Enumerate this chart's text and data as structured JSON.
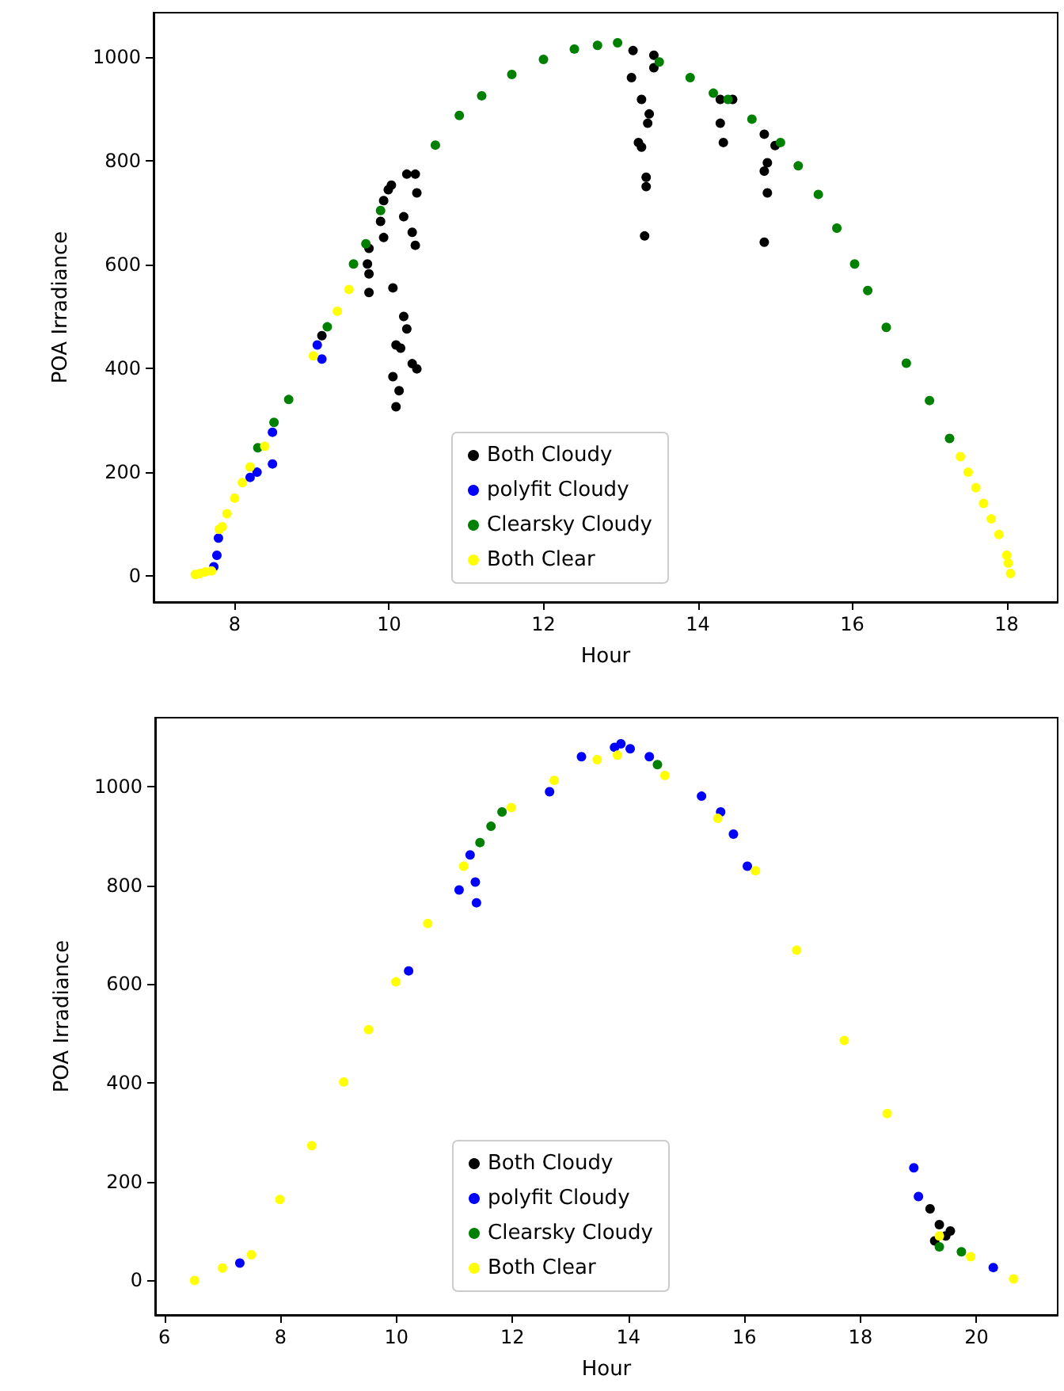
{
  "chart_data": [
    {
      "type": "scatter",
      "xlabel": "Hour",
      "ylabel": "POA Irradiance",
      "xlim": [
        6.95,
        18.66
      ],
      "ylim": [
        -50,
        1085
      ],
      "xticks": [
        8,
        10,
        12,
        14,
        16,
        18
      ],
      "yticks": [
        0,
        200,
        400,
        600,
        800,
        1000
      ],
      "legend": "bottom",
      "marker": "circle",
      "series": [
        {
          "name": "Both Cloudy",
          "color": "#000000",
          "x": [
            9.13,
            9.72,
            9.74,
            9.74,
            9.74,
            9.89,
            9.93,
            9.93,
            9.99,
            10.03,
            10.23,
            10.34,
            10.36,
            10.19,
            10.3,
            10.34,
            10.05,
            10.19,
            10.23,
            10.09,
            10.15,
            10.05,
            10.13,
            10.09,
            10.3,
            10.36,
            13.16,
            13.43,
            13.43,
            13.14,
            13.27,
            13.37,
            13.35,
            13.23,
            13.27,
            13.33,
            13.33,
            13.31,
            14.29,
            14.45,
            14.29,
            14.33,
            14.86,
            15.0,
            14.9,
            14.86,
            14.9,
            14.86
          ],
          "values": [
            463,
            601,
            631,
            582,
            546,
            683,
            652,
            723,
            744,
            753,
            774,
            774,
            738,
            692,
            662,
            637,
            555,
            500,
            476,
            445,
            439,
            384,
            357,
            326,
            409,
            399,
            1012,
            1003,
            979,
            960,
            918,
            890,
            872,
            835,
            826,
            768,
            750,
            655,
            918,
            918,
            872,
            835,
            851,
            829,
            796,
            780,
            738,
            643
          ]
        },
        {
          "name": "polyfit Cloudy",
          "color": "#0000ff",
          "x": [
            7.73,
            7.77,
            7.79,
            8.2,
            8.29,
            8.49,
            8.49,
            9.07,
            9.13
          ],
          "values": [
            18,
            40,
            73,
            190,
            200,
            216,
            277,
            445,
            418
          ]
        },
        {
          "name": "Clearsky Cloudy",
          "color": "#008000",
          "x": [
            8.3,
            8.51,
            8.7,
            9.2,
            9.54,
            9.7,
            9.89,
            10.6,
            10.91,
            11.2,
            11.59,
            12.0,
            12.4,
            12.7,
            12.96,
            13.5,
            13.9,
            14.2,
            14.39,
            14.7,
            15.07,
            15.3,
            15.56,
            15.8,
            16.03,
            16.2,
            16.44,
            16.7,
            17.0,
            17.26
          ],
          "values": [
            247,
            296,
            340,
            480,
            601,
            640,
            704,
            830,
            887,
            925,
            966,
            995,
            1015,
            1022,
            1027,
            990,
            960,
            930,
            918,
            880,
            835,
            790,
            735,
            670,
            601,
            550,
            479,
            410,
            338,
            265
          ]
        },
        {
          "name": "Both Clear",
          "color": "#ffff00",
          "x": [
            7.49,
            7.55,
            7.62,
            7.7,
            7.8,
            7.84,
            7.9,
            8.0,
            8.1,
            8.2,
            8.39,
            9.02,
            9.33,
            9.48,
            17.4,
            17.5,
            17.6,
            17.7,
            17.8,
            17.9,
            18.0,
            18.02,
            18.05
          ],
          "values": [
            3,
            5,
            8,
            10,
            90,
            95,
            120,
            150,
            180,
            210,
            250,
            424,
            510,
            552,
            230,
            200,
            170,
            140,
            110,
            80,
            40,
            25,
            5
          ]
        }
      ]
    },
    {
      "type": "scatter",
      "xlabel": "Hour",
      "ylabel": "POA Irradiance",
      "xlim": [
        5.84,
        21.4
      ],
      "ylim": [
        -70,
        1140
      ],
      "xticks": [
        6,
        8,
        10,
        12,
        14,
        16,
        18,
        20
      ],
      "yticks": [
        0,
        200,
        400,
        600,
        800,
        1000
      ],
      "legend": "bottom",
      "marker": "circle",
      "series": [
        {
          "name": "Both Cloudy",
          "color": "#000000",
          "x": [
            19.2,
            19.36,
            19.47,
            19.28,
            19.55
          ],
          "values": [
            145,
            113,
            90,
            80,
            100
          ]
        },
        {
          "name": "polyfit Cloudy",
          "color": "#0000ff",
          "x": [
            7.3,
            10.21,
            11.08,
            11.27,
            11.36,
            11.38,
            12.64,
            13.19,
            13.76,
            13.87,
            14.03,
            14.36,
            15.26,
            15.59,
            15.81,
            16.05,
            18.92,
            19.0,
            20.29
          ],
          "values": [
            35,
            627,
            791,
            862,
            807,
            765,
            990,
            1061,
            1080,
            1087,
            1077,
            1061,
            981,
            949,
            904,
            839,
            228,
            170,
            26
          ]
        },
        {
          "name": "Clearsky Cloudy",
          "color": "#008000",
          "x": [
            11.44,
            11.63,
            11.82,
            14.5,
            19.36,
            19.74
          ],
          "values": [
            887,
            920,
            949,
            1045,
            68,
            58
          ]
        },
        {
          "name": "Both Clear",
          "color": "#ffff00",
          "x": [
            6.52,
            7.0,
            7.5,
            7.99,
            8.54,
            9.09,
            9.52,
            9.99,
            10.54,
            11.16,
            11.98,
            12.72,
            13.46,
            13.81,
            14.63,
            15.54,
            16.19,
            16.9,
            17.72,
            18.46,
            19.36,
            19.9,
            20.64
          ],
          "values": [
            0,
            25,
            52,
            164,
            273,
            402,
            508,
            605,
            723,
            839,
            958,
            1013,
            1055,
            1064,
            1023,
            936,
            830,
            669,
            486,
            338,
            90,
            48,
            3
          ]
        }
      ]
    }
  ]
}
